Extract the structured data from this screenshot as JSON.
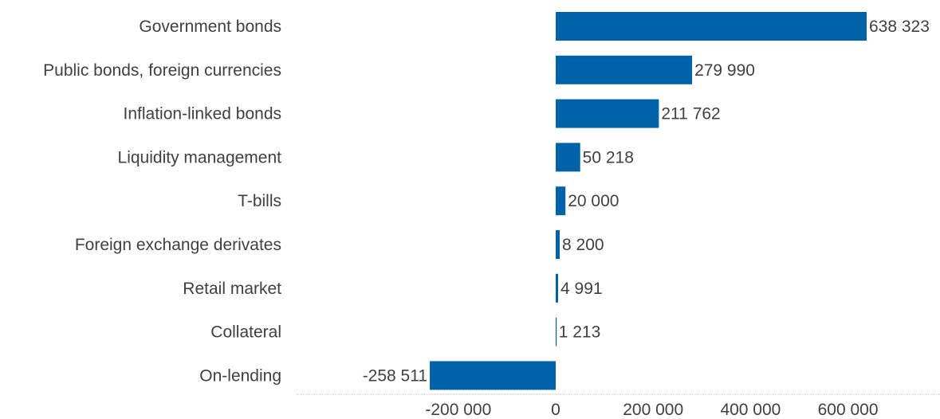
{
  "chart_data": {
    "type": "bar",
    "orientation": "horizontal",
    "categories": [
      "Government bonds",
      "Public bonds, foreign currencies",
      "Inflation-linked bonds",
      "Liquidity management",
      "T-bills",
      "Foreign exchange derivates",
      "Retail market",
      "Collateral",
      "On-lending"
    ],
    "values": [
      638323,
      279990,
      211762,
      50218,
      20000,
      8200,
      4991,
      1213,
      -258511
    ],
    "data_labels": [
      "638 323",
      "279 990",
      "211 762",
      "50 218",
      "20 000",
      "8 200",
      "4 991",
      "1 213",
      "-258 511"
    ],
    "x_ticks": [
      -200000,
      0,
      200000,
      400000,
      600000
    ],
    "x_tick_labels": [
      "-200 000",
      "0",
      "200 000",
      "400 000",
      "600 000"
    ],
    "xlim": [
      -530000,
      790000
    ],
    "title": "",
    "xlabel": "",
    "ylabel": "",
    "grid": false,
    "legend": "none",
    "bar_color": "#0063AA",
    "text_color": "#404040"
  }
}
